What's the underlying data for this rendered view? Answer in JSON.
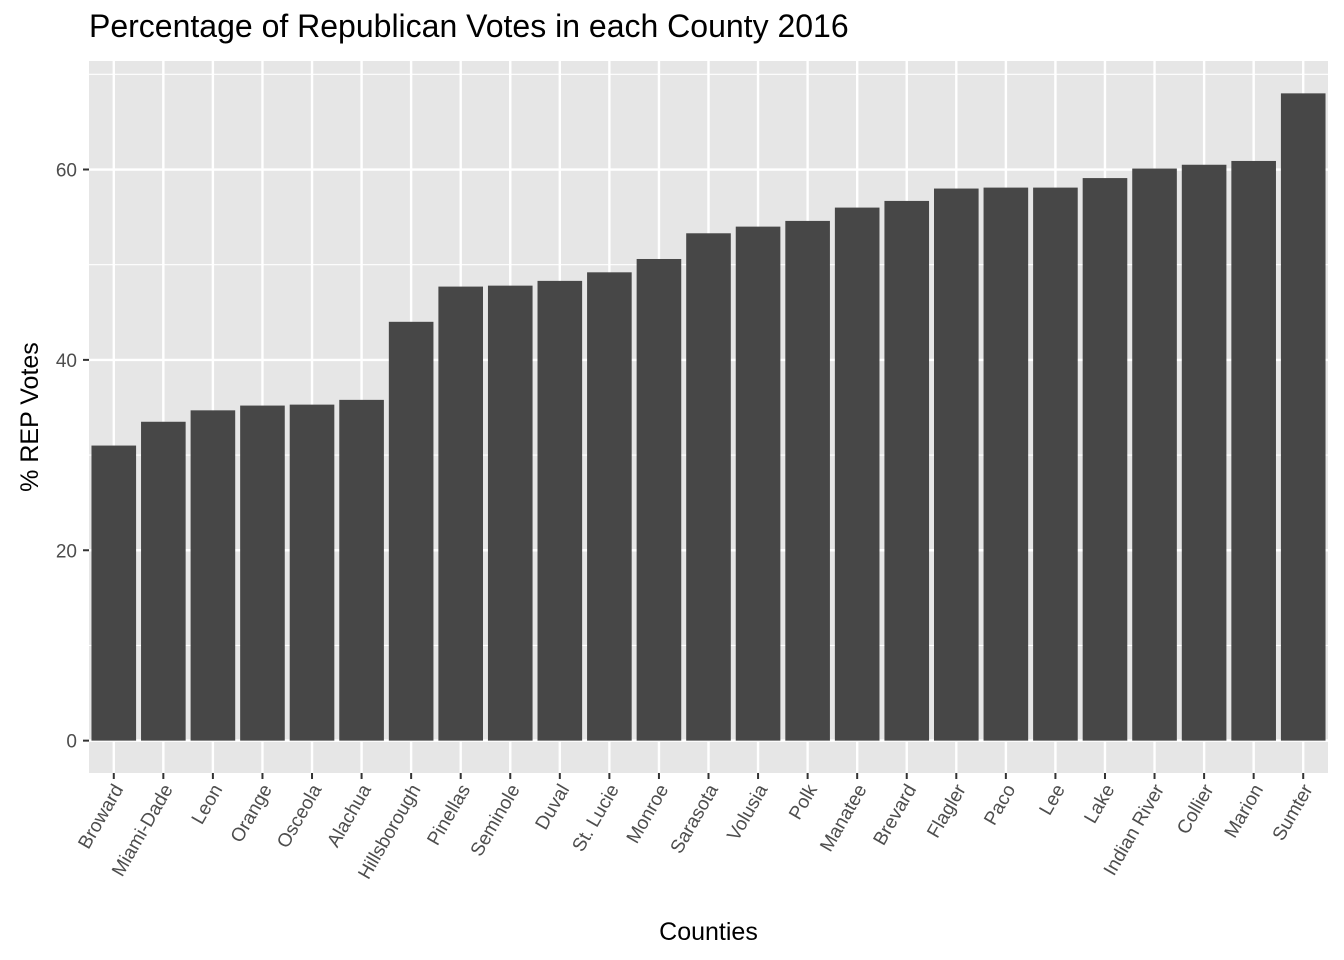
{
  "chart_data": {
    "type": "bar",
    "title": "Percentage of Republican Votes in each County 2016",
    "xlabel": "Counties",
    "ylabel": "% REP Votes",
    "categories": [
      "Broward",
      "Miami-Dade",
      "Leon",
      "Orange",
      "Osceola",
      "Alachua",
      "Hillsborough",
      "Pinellas",
      "Seminole",
      "Duval",
      "St. Lucie",
      "Monroe",
      "Sarasota",
      "Volusia",
      "Polk",
      "Manatee",
      "Brevard",
      "Flagler",
      "Paco",
      "Lee",
      "Lake",
      "Indian River",
      "Collier",
      "Marion",
      "Sumter"
    ],
    "values": [
      31.0,
      33.5,
      34.7,
      35.2,
      35.3,
      35.8,
      44.0,
      47.7,
      47.8,
      48.3,
      49.2,
      50.6,
      53.3,
      54.0,
      54.6,
      56.0,
      56.7,
      58.0,
      58.1,
      58.1,
      59.1,
      60.1,
      60.5,
      60.9,
      68.0
    ],
    "yticks": [
      0,
      20,
      40,
      60
    ],
    "ylim": [
      -3.4,
      71.4
    ],
    "grid": true,
    "bar_color": "#474747",
    "panel_background": "#e6e6e6",
    "grid_color": "#ffffff"
  }
}
